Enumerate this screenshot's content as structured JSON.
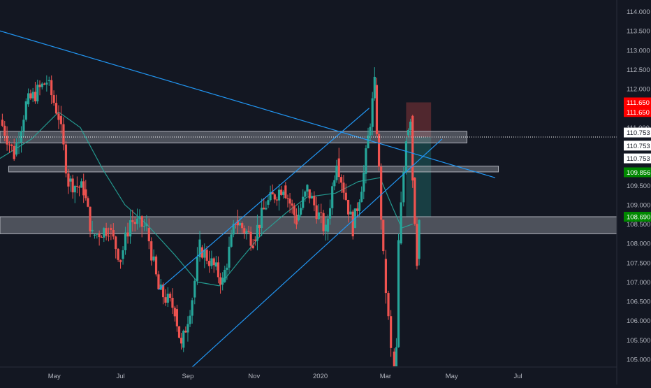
{
  "chart_data": {
    "type": "candlestick",
    "title": "",
    "xlabel": "",
    "ylabel": "",
    "ylim": [
      104.8,
      114.3
    ],
    "x_range": [
      "2019-03-12",
      "2020-09-30"
    ],
    "x_ticks": [
      {
        "date": "2019-05-01",
        "label": "May"
      },
      {
        "date": "2019-07-01",
        "label": "Jul"
      },
      {
        "date": "2019-09-01",
        "label": "Sep"
      },
      {
        "date": "2019-11-01",
        "label": "Nov"
      },
      {
        "date": "2020-01-01",
        "label": "2020"
      },
      {
        "date": "2020-03-01",
        "label": "Mar"
      },
      {
        "date": "2020-05-01",
        "label": "May"
      },
      {
        "date": "2020-07-01",
        "label": "Jul"
      }
    ],
    "y_ticks": [
      "114.000",
      "113.500",
      "113.000",
      "112.500",
      "112.000",
      "111.000",
      "110.500",
      "109.500",
      "109.000",
      "108.500",
      "108.000",
      "107.500",
      "107.000",
      "106.500",
      "106.000",
      "105.500",
      "105.000"
    ],
    "grid": false,
    "colors": {
      "up": "#26a69a",
      "down": "#ef5350",
      "moving_average": "#26a69a",
      "trendline": "#2196f3",
      "zone": "#9598a1"
    },
    "price_points": [
      {
        "date": "2019-03-12",
        "price": 111.2
      },
      {
        "date": "2019-03-25",
        "price": 110.3
      },
      {
        "date": "2019-04-05",
        "price": 111.6
      },
      {
        "date": "2019-04-24",
        "price": 112.2
      },
      {
        "date": "2019-05-05",
        "price": 111.3
      },
      {
        "date": "2019-05-14",
        "price": 109.6
      },
      {
        "date": "2019-05-28",
        "price": 109.4
      },
      {
        "date": "2019-06-05",
        "price": 108.2
      },
      {
        "date": "2019-06-20",
        "price": 108.4
      },
      {
        "date": "2019-07-01",
        "price": 107.6
      },
      {
        "date": "2019-07-10",
        "price": 108.6
      },
      {
        "date": "2019-07-25",
        "price": 108.4
      },
      {
        "date": "2019-08-05",
        "price": 106.8
      },
      {
        "date": "2019-08-20",
        "price": 106.3
      },
      {
        "date": "2019-08-26",
        "price": 105.3
      },
      {
        "date": "2019-09-05",
        "price": 106.6
      },
      {
        "date": "2019-09-12",
        "price": 107.9
      },
      {
        "date": "2019-09-25",
        "price": 107.4
      },
      {
        "date": "2019-10-03",
        "price": 107.0
      },
      {
        "date": "2019-10-15",
        "price": 108.6
      },
      {
        "date": "2019-10-31",
        "price": 108.1
      },
      {
        "date": "2019-11-12",
        "price": 109.0
      },
      {
        "date": "2019-11-28",
        "price": 109.5
      },
      {
        "date": "2019-12-10",
        "price": 108.6
      },
      {
        "date": "2019-12-20",
        "price": 109.4
      },
      {
        "date": "2020-01-06",
        "price": 108.3
      },
      {
        "date": "2020-01-16",
        "price": 110.2
      },
      {
        "date": "2020-01-31",
        "price": 108.4
      },
      {
        "date": "2020-02-10",
        "price": 109.8
      },
      {
        "date": "2020-02-20",
        "price": 112.1
      },
      {
        "date": "2020-02-28",
        "price": 107.6
      },
      {
        "date": "2020-03-06",
        "price": 105.2
      },
      {
        "date": "2020-03-09",
        "price": 102.4
      },
      {
        "date": "2020-03-13",
        "price": 108.0
      },
      {
        "date": "2020-03-20",
        "price": 110.8
      },
      {
        "date": "2020-03-24",
        "price": 111.3
      },
      {
        "date": "2020-03-26",
        "price": 109.7
      },
      {
        "date": "2020-03-30",
        "price": 107.6
      },
      {
        "date": "2020-04-01",
        "price": 108.6
      }
    ],
    "moving_average": [
      {
        "date": "2019-03-12",
        "price": 110.2
      },
      {
        "date": "2019-04-10",
        "price": 110.7
      },
      {
        "date": "2019-05-05",
        "price": 111.4
      },
      {
        "date": "2019-05-25",
        "price": 111.0
      },
      {
        "date": "2019-06-15",
        "price": 109.9
      },
      {
        "date": "2019-07-05",
        "price": 109.0
      },
      {
        "date": "2019-07-25",
        "price": 108.5
      },
      {
        "date": "2019-08-20",
        "price": 107.7
      },
      {
        "date": "2019-09-10",
        "price": 107.0
      },
      {
        "date": "2019-09-30",
        "price": 106.9
      },
      {
        "date": "2019-10-20",
        "price": 107.6
      },
      {
        "date": "2019-11-10",
        "price": 108.3
      },
      {
        "date": "2019-12-01",
        "price": 108.8
      },
      {
        "date": "2019-12-20",
        "price": 109.2
      },
      {
        "date": "2020-01-15",
        "price": 109.3
      },
      {
        "date": "2020-02-05",
        "price": 109.6
      },
      {
        "date": "2020-02-25",
        "price": 109.7
      },
      {
        "date": "2020-03-08",
        "price": 108.9
      },
      {
        "date": "2020-03-16",
        "price": 108.4
      },
      {
        "date": "2020-03-26",
        "price": 108.5
      }
    ],
    "trendlines": [
      {
        "from": {
          "date": "2019-03-12",
          "price": 113.5
        },
        "to": {
          "date": "2020-06-10",
          "price": 109.7
        }
      },
      {
        "from": {
          "date": "2019-08-05",
          "price": 106.8
        },
        "to": {
          "date": "2020-02-15",
          "price": 111.5
        }
      },
      {
        "from": {
          "date": "2019-09-05",
          "price": 104.8
        },
        "to": {
          "date": "2020-04-22",
          "price": 110.7
        }
      }
    ],
    "zones": [
      {
        "from": "2019-03-12",
        "to": "2020-05-15",
        "top": 110.9,
        "bottom": 110.6
      },
      {
        "from": "2019-03-20",
        "to": "2020-06-13",
        "top": 110.0,
        "bottom": 109.85
      },
      {
        "from": "2019-03-12",
        "to": "2020-09-30",
        "top": 108.69,
        "bottom": 108.25
      }
    ],
    "position": {
      "from": "2020-03-20",
      "to": "2020-04-12",
      "entry": 110.75,
      "stop": 111.65,
      "target": 108.69,
      "stop_color": "#ef5350",
      "target_color": "#26a69a"
    },
    "dotted_line_price": 110.753,
    "markers": [
      {
        "label": "111.650",
        "price": 111.65,
        "background": "#ff0000",
        "color": "#ffffff"
      },
      {
        "label": "111.650",
        "price": 111.4,
        "background": "#ff0000",
        "color": "#ffffff"
      },
      {
        "label": "110.753",
        "price": 110.87,
        "background": "#ffffff",
        "color": "#131722"
      },
      {
        "label": "110.753",
        "price": 110.53,
        "background": "#ffffff",
        "color": "#131722"
      },
      {
        "label": "110.753",
        "price": 110.2,
        "background": "#ffffff",
        "color": "#131722"
      },
      {
        "label": "109.856",
        "price": 109.84,
        "background": "#008800",
        "color": "#ffffff"
      },
      {
        "label": "108.690",
        "price": 108.69,
        "background": "#008800",
        "color": "#ffffff"
      }
    ]
  }
}
